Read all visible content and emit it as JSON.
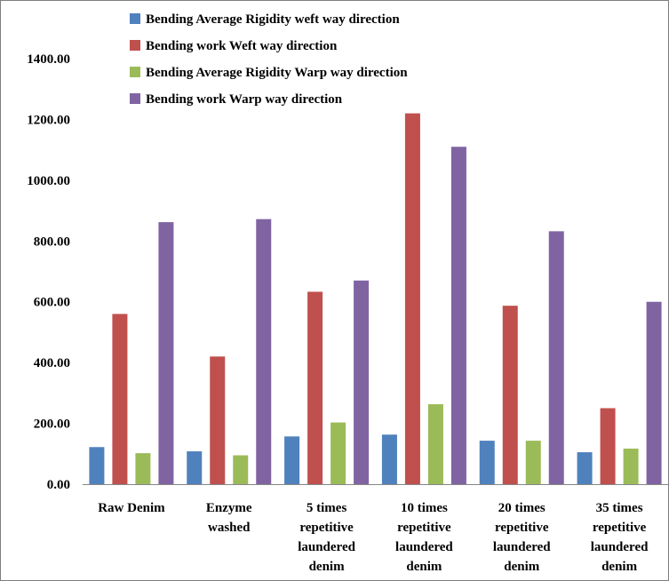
{
  "chart_data": {
    "type": "bar",
    "title": "",
    "xlabel": "",
    "ylabel": "",
    "ylim": [
      0,
      1400
    ],
    "yticks": [
      "0.00",
      "200.00",
      "400.00",
      "600.00",
      "800.00",
      "1000.00",
      "1200.00",
      "1400.00"
    ],
    "grid": false,
    "legend_position": "top",
    "categories": [
      [
        "Raw Denim"
      ],
      [
        "Enzyme",
        "washed"
      ],
      [
        "5 times",
        "repetitive",
        "laundered",
        "denim"
      ],
      [
        "10 times",
        "repetitive",
        "laundered",
        "denim"
      ],
      [
        "20 times",
        "repetitive",
        "laundered",
        "denim"
      ],
      [
        "35 times",
        "repetitive",
        "laundered",
        "denim"
      ]
    ],
    "series": [
      {
        "name": "Bending Average Rigidity weft way direction",
        "color": "#4f81bd",
        "values": [
          122,
          108,
          157,
          163,
          143,
          105
        ]
      },
      {
        "name": "Bending work Weft way direction",
        "color": "#c0504d",
        "values": [
          560,
          420,
          633,
          1220,
          587,
          250
        ]
      },
      {
        "name": "Bending Average Rigidity Warp way direction",
        "color": "#9bbb59",
        "values": [
          102,
          95,
          203,
          263,
          143,
          117
        ]
      },
      {
        "name": "Bending work Warp way direction",
        "color": "#8064a2",
        "values": [
          862,
          872,
          670,
          1110,
          832,
          600
        ]
      }
    ]
  }
}
